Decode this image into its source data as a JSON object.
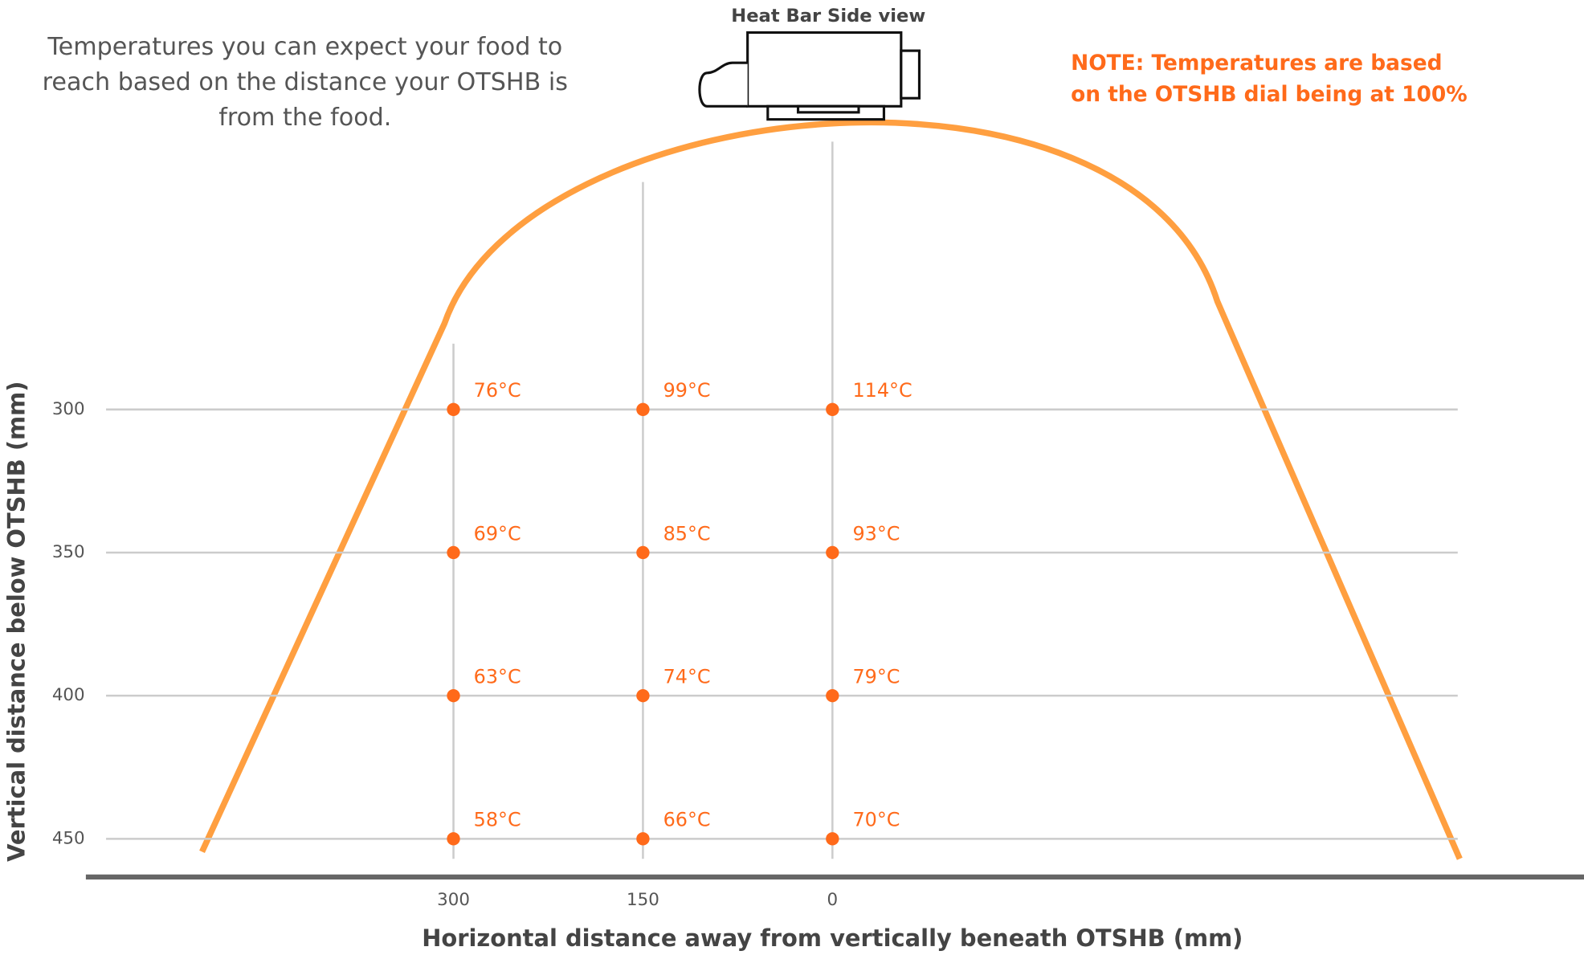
{
  "chart_data": {
    "type": "scatter",
    "title": "Heat Bar Side view",
    "subtitle": [
      "Temperatures you can expect your food to",
      "reach based on the distance your OTSHB is",
      "from the food."
    ],
    "note": [
      "NOTE: Temperatures are based",
      "on the OTSHB dial being at 100%"
    ],
    "xlabel": "Horizontal distance away from vertically beneath OTSHB (mm)",
    "ylabel": "Vertical distance below OTSHB (mm)",
    "xlim": [
      575,
      -495
    ],
    "xticks": [
      300,
      150,
      0
    ],
    "ylim": [
      457,
      277
    ],
    "yticks": [
      300,
      350,
      400,
      450
    ],
    "grid": true,
    "color": "#ff6a1a",
    "curve_color": "#ff9f40",
    "x": [
      300,
      150,
      0,
      300,
      150,
      0,
      300,
      150,
      0,
      300,
      150,
      0
    ],
    "y": [
      300,
      300,
      300,
      350,
      350,
      350,
      400,
      400,
      400,
      450,
      450,
      450
    ],
    "values": [
      76,
      99,
      114,
      69,
      85,
      93,
      63,
      74,
      79,
      58,
      66,
      70
    ],
    "value_labels": [
      "76°C",
      "99°C",
      "114°C",
      "69°C",
      "85°C",
      "93°C",
      "63°C",
      "74°C",
      "79°C",
      "58°C",
      "66°C",
      "70°C"
    ]
  }
}
